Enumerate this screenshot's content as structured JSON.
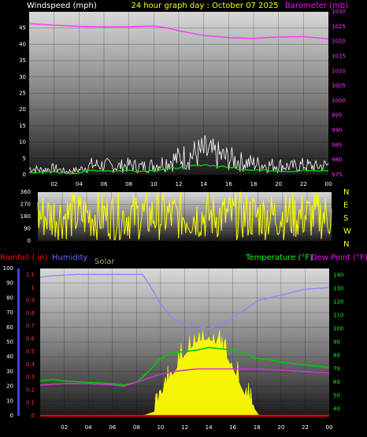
{
  "header": {
    "windspeed_label": "Windspeed (mph)",
    "date_label": "24 hour graph day : October 07 2025",
    "barometer_label": "Barometer (mb)"
  },
  "bottom_header": {
    "rainfall_label": "Rainfall (.in)",
    "humidity_label": "Humidity",
    "solar_label": "Solar",
    "temperature_label": "Temperature (°F)",
    "dewpoint_label": "Dew Point (°F)"
  },
  "colors": {
    "windspeed": "#ffffff",
    "gust_avg": "#00dd00",
    "barometer": "#ff33ff",
    "direction": "#ffff00",
    "temperature": "#00cc00",
    "dewpoint": "#cc33cc",
    "humidity": "#8888ff",
    "solar": "#ffff00",
    "rain": "#ff0000",
    "header_yellow": "#ffff00",
    "header_green": "#00ff00",
    "header_magenta": "#ff00ff",
    "humidity_label": "#6666ff",
    "solar_label": "#aaaa66"
  },
  "x_ticks": [
    "02",
    "04",
    "06",
    "08",
    "10",
    "12",
    "14",
    "16",
    "18",
    "20",
    "22",
    "00"
  ],
  "wind_axis": {
    "ticks": [
      "0",
      "5",
      "10",
      "15",
      "20",
      "25",
      "30",
      "35",
      "40",
      "45"
    ]
  },
  "baro_axis": {
    "ticks": [
      "975",
      "980",
      "985",
      "990",
      "995",
      "1000",
      "1005",
      "1010",
      "1015",
      "1020",
      "1025",
      "1030"
    ]
  },
  "dir_axis": {
    "ticks": [
      "0",
      "90",
      "180",
      "270",
      "360"
    ],
    "compass": [
      "N",
      "W",
      "S",
      "E",
      "N"
    ]
  },
  "humidity_axis": {
    "ticks": [
      "0",
      "10",
      "20",
      "30",
      "40",
      "50",
      "60",
      "70",
      "80",
      "90",
      "100"
    ]
  },
  "rain_axis": {
    "ticks": [
      "0",
      "0.1",
      "0.2",
      "0.3",
      "0.4",
      "0.5",
      "0.6",
      "0.7",
      "0.8",
      "0.9",
      "1",
      "1.1"
    ]
  },
  "temp_axis": {
    "ticks": [
      "40",
      "50",
      "60",
      "70",
      "80",
      "90",
      "100",
      "110",
      "120",
      "130",
      "140"
    ]
  },
  "chart_data": [
    {
      "type": "line",
      "x_unit": "hour",
      "xlim": [
        0,
        24
      ],
      "series": [
        {
          "name": "Windspeed (mph)",
          "axis": "left",
          "ylim": [
            0,
            50
          ],
          "points": [
            [
              0,
              2
            ],
            [
              1,
              1.5
            ],
            [
              2,
              2
            ],
            [
              3,
              1
            ],
            [
              4,
              1.5
            ],
            [
              5,
              3
            ],
            [
              6,
              3
            ],
            [
              7,
              2.5
            ],
            [
              8,
              3
            ],
            [
              9,
              2.5
            ],
            [
              10,
              3
            ],
            [
              11,
              4
            ],
            [
              12,
              5
            ],
            [
              13,
              6
            ],
            [
              14,
              7
            ],
            [
              15,
              6
            ],
            [
              16,
              5
            ],
            [
              17,
              4
            ],
            [
              18,
              3.5
            ],
            [
              19,
              3
            ],
            [
              20,
              3
            ],
            [
              21,
              2.5
            ],
            [
              22,
              3
            ],
            [
              23,
              2.5
            ],
            [
              24,
              3
            ]
          ]
        },
        {
          "name": "Barometer (mb)",
          "axis": "right",
          "ylim": [
            975,
            1030
          ],
          "points": [
            [
              0,
              1026
            ],
            [
              2,
              1025.5
            ],
            [
              4,
              1025.1
            ],
            [
              6,
              1024.9
            ],
            [
              8,
              1025
            ],
            [
              10,
              1025.2
            ],
            [
              11,
              1024.6
            ],
            [
              12,
              1023.6
            ],
            [
              13,
              1022.8
            ],
            [
              14,
              1022
            ],
            [
              16,
              1021.3
            ],
            [
              18,
              1021
            ],
            [
              19,
              1021.3
            ],
            [
              20,
              1021.5
            ],
            [
              22,
              1021.6
            ],
            [
              24,
              1020.9
            ]
          ]
        }
      ]
    },
    {
      "type": "line",
      "x_unit": "hour",
      "xlim": [
        0,
        24
      ],
      "ylim": [
        0,
        360
      ],
      "series": [
        {
          "name": "Wind direction",
          "center": 185,
          "spread": 180,
          "samples": 288
        }
      ]
    },
    {
      "type": "line",
      "x_unit": "hour",
      "xlim": [
        0,
        24
      ],
      "series": [
        {
          "name": "Humidity",
          "axis": "humidity",
          "ylim": [
            0,
            100
          ],
          "points": [
            [
              0,
              94
            ],
            [
              1,
              95
            ],
            [
              3,
              96
            ],
            [
              6,
              96
            ],
            [
              8.5,
              96
            ],
            [
              9,
              90
            ],
            [
              10,
              76
            ],
            [
              11,
              66
            ],
            [
              12,
              62
            ],
            [
              13,
              61
            ],
            [
              14,
              59
            ],
            [
              15,
              62
            ],
            [
              16,
              67
            ],
            [
              17,
              72
            ],
            [
              18,
              78
            ],
            [
              19,
              80
            ],
            [
              20,
              82
            ],
            [
              22,
              86
            ],
            [
              24,
              87
            ]
          ]
        },
        {
          "name": "Temperature (°F)",
          "axis": "temp",
          "ylim": [
            35,
            145
          ],
          "points": [
            [
              0,
              61
            ],
            [
              1,
              62
            ],
            [
              2,
              61
            ],
            [
              4,
              60
            ],
            [
              6,
              59
            ],
            [
              7,
              58
            ],
            [
              8,
              60
            ],
            [
              9,
              68
            ],
            [
              10,
              78
            ],
            [
              11,
              82
            ],
            [
              12,
              83
            ],
            [
              13,
              84
            ],
            [
              14,
              86
            ],
            [
              15,
              85
            ],
            [
              16,
              84
            ],
            [
              17,
              81
            ],
            [
              18,
              78
            ],
            [
              19,
              77
            ],
            [
              20,
              75
            ],
            [
              21,
              74
            ],
            [
              22,
              73
            ],
            [
              24,
              71
            ]
          ]
        },
        {
          "name": "Dew Point (°F)",
          "axis": "temp",
          "ylim": [
            35,
            145
          ],
          "points": [
            [
              0,
              58
            ],
            [
              2,
              59
            ],
            [
              4,
              59
            ],
            [
              6,
              58
            ],
            [
              7,
              57
            ],
            [
              8,
              60
            ],
            [
              9,
              63
            ],
            [
              10,
              66
            ],
            [
              11,
              68
            ],
            [
              12,
              69
            ],
            [
              13,
              70
            ],
            [
              14,
              70
            ],
            [
              16,
              70
            ],
            [
              18,
              70
            ],
            [
              20,
              69
            ],
            [
              22,
              68
            ],
            [
              24,
              67
            ]
          ]
        },
        {
          "name": "Solar",
          "axis": "temp",
          "ylim": [
            35,
            145
          ],
          "points": [
            [
              0,
              35
            ],
            [
              8.5,
              35
            ],
            [
              9.5,
              38
            ],
            [
              10.3,
              55
            ],
            [
              11,
              65
            ],
            [
              12,
              80
            ],
            [
              13,
              90
            ],
            [
              14,
              92
            ],
            [
              15,
              86
            ],
            [
              16,
              70
            ],
            [
              17,
              50
            ],
            [
              17.8,
              40
            ],
            [
              18.2,
              35
            ],
            [
              24,
              35
            ]
          ]
        },
        {
          "name": "Rainfall (.in)",
          "axis": "rain",
          "ylim": [
            0,
            1.15
          ],
          "points": [
            [
              0,
              0
            ],
            [
              24,
              0
            ]
          ]
        }
      ]
    }
  ]
}
